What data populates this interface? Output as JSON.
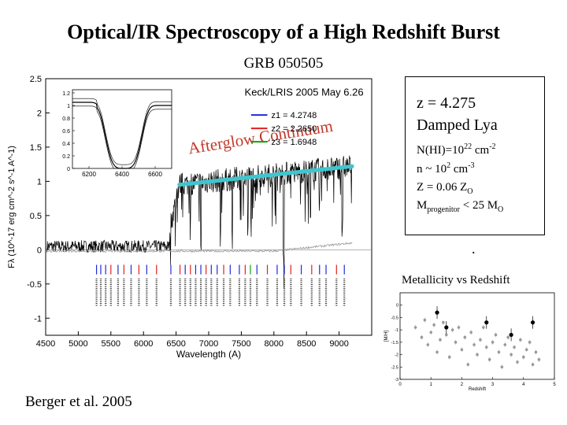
{
  "slide": {
    "title": "Optical/IR Spectroscopy of a High Redshift Burst",
    "subtitle": "GRB 050505",
    "credit": "Berger et al. 2005",
    "dot": "."
  },
  "info": {
    "z": "z = 4.275",
    "dla": "Damped Lya",
    "nhi_prefix": "N(HI)=10",
    "nhi_exp": "22",
    "nhi_unit": " cm",
    "nhi_unit_exp": "-2",
    "n_prefix": "n ~ 10",
    "n_exp": "2",
    "n_unit": " cm",
    "n_unit_exp": "-3",
    "metal_prefix": "Z = 0.06 Z",
    "metal_sub": "O",
    "mass_prefix": "M",
    "mass_sub": "progenitor",
    "mass_mid": " < 25 M",
    "mass_sub2": "O"
  },
  "chart_data": [
    {
      "type": "line",
      "title": "Keck/LRIS  2005 May 6.26",
      "xlabel": "Wavelength (A)",
      "ylabel": "Fλ (10^-17 erg cm^-2 s^-1 A^-1)",
      "xlim": [
        4500,
        9500
      ],
      "ylim": [
        -1.25,
        2.5
      ],
      "xticks": [
        4500,
        5000,
        5500,
        6000,
        6500,
        7000,
        7500,
        8000,
        8500,
        9000
      ],
      "yticks": [
        -1,
        -0.5,
        0,
        0.5,
        1,
        1.5,
        2,
        2.5
      ],
      "legend": [
        {
          "label": "z1 = 4.2748",
          "color": "#1f2bd9"
        },
        {
          "label": "z2 = 2.2650",
          "color": "#e02020"
        },
        {
          "label": "z3 = 1.6948",
          "color": "#10a010"
        }
      ],
      "annotation": "Afterglow Continuum",
      "annotation_color": "#c0392b",
      "continuum_line_color": "#3ec6cf",
      "lyman_edge": 6400,
      "flux_level_pre_edge": 0.05,
      "continuum_start": [
        6550,
        0.95
      ],
      "continuum_end": [
        9200,
        1.22
      ],
      "absorption_lines": [
        {
          "lambda": 6880,
          "depth": 0.95
        },
        {
          "lambda": 7180,
          "depth": 0.9
        },
        {
          "lambda": 7360,
          "depth": 0.85
        },
        {
          "lambda": 7600,
          "depth": 0.8
        },
        {
          "lambda": 7650,
          "depth": 0.7
        },
        {
          "lambda": 8150,
          "depth": 1.1
        },
        {
          "lambda": 8560,
          "depth": 0.75
        },
        {
          "lambda": 8700,
          "depth": 0.6
        },
        {
          "lambda": 9050,
          "depth": 0.9
        }
      ],
      "line_ids": [
        {
          "lambda": 5280,
          "color": "#1f2bd9"
        },
        {
          "lambda": 5345,
          "color": "#1f2bd9"
        },
        {
          "lambda": 5420,
          "color": "#1f2bd9"
        },
        {
          "lambda": 5500,
          "color": "#e02020"
        },
        {
          "lambda": 5610,
          "color": "#1f2bd9"
        },
        {
          "lambda": 5700,
          "color": "#e02020"
        },
        {
          "lambda": 5810,
          "color": "#1f2bd9"
        },
        {
          "lambda": 5930,
          "color": "#e02020"
        },
        {
          "lambda": 6050,
          "color": "#1f2bd9"
        },
        {
          "lambda": 6200,
          "color": "#e02020"
        },
        {
          "lambda": 6420,
          "color": "#1f2bd9"
        },
        {
          "lambda": 6560,
          "color": "#e02020"
        },
        {
          "lambda": 6640,
          "color": "#1f2bd9"
        },
        {
          "lambda": 6720,
          "color": "#e02020"
        },
        {
          "lambda": 6800,
          "color": "#1f2bd9"
        },
        {
          "lambda": 6880,
          "color": "#1f2bd9"
        },
        {
          "lambda": 6960,
          "color": "#e02020"
        },
        {
          "lambda": 7040,
          "color": "#1f2bd9"
        },
        {
          "lambda": 7130,
          "color": "#1f2bd9"
        },
        {
          "lambda": 7230,
          "color": "#e02020"
        },
        {
          "lambda": 7330,
          "color": "#1f2bd9"
        },
        {
          "lambda": 7470,
          "color": "#1f2bd9"
        },
        {
          "lambda": 7560,
          "color": "#e02020"
        },
        {
          "lambda": 7640,
          "color": "#10a010"
        },
        {
          "lambda": 7740,
          "color": "#1f2bd9"
        },
        {
          "lambda": 7900,
          "color": "#e02020"
        },
        {
          "lambda": 8050,
          "color": "#1f2bd9"
        },
        {
          "lambda": 8160,
          "color": "#1f2bd9"
        },
        {
          "lambda": 8260,
          "color": "#e02020"
        },
        {
          "lambda": 8420,
          "color": "#1f2bd9"
        },
        {
          "lambda": 8580,
          "color": "#e02020"
        },
        {
          "lambda": 8700,
          "color": "#1f2bd9"
        },
        {
          "lambda": 8800,
          "color": "#1f2bd9"
        },
        {
          "lambda": 8960,
          "color": "#e02020"
        },
        {
          "lambda": 9080,
          "color": "#1f2bd9"
        }
      ],
      "inset": {
        "xlim": [
          6100,
          6700
        ],
        "ylim": [
          0,
          1.25
        ],
        "xticks": [
          6200,
          6400,
          6600
        ],
        "yticks": [
          0,
          0.2,
          0.4,
          0.6,
          0.8,
          1,
          1.2
        ],
        "trough_center": 6410,
        "trough_halfwidth": 120
      }
    },
    {
      "type": "scatter",
      "title": "Metallicity vs Redshift",
      "xlabel": "Redshift",
      "ylabel": "[M/H]",
      "xlim": [
        0,
        5
      ],
      "ylim": [
        -3,
        0.5
      ],
      "xticks": [
        0,
        1,
        2,
        3,
        4,
        5
      ],
      "yticks": [
        0,
        -0.5,
        -1,
        -1.5,
        -2,
        -2.5,
        -3
      ],
      "points_gray": [
        [
          0.5,
          -0.9
        ],
        [
          0.7,
          -1.3
        ],
        [
          0.8,
          -0.6
        ],
        [
          0.9,
          -1.6
        ],
        [
          1.0,
          -1.1
        ],
        [
          1.1,
          -0.8
        ],
        [
          1.2,
          -1.9
        ],
        [
          1.3,
          -1.4
        ],
        [
          1.4,
          -0.7
        ],
        [
          1.5,
          -1.2
        ],
        [
          1.6,
          -2.1
        ],
        [
          1.7,
          -1.0
        ],
        [
          1.8,
          -1.5
        ],
        [
          1.9,
          -0.9
        ],
        [
          2.0,
          -1.8
        ],
        [
          2.1,
          -1.3
        ],
        [
          2.2,
          -2.4
        ],
        [
          2.3,
          -1.1
        ],
        [
          2.4,
          -1.6
        ],
        [
          2.5,
          -2.0
        ],
        [
          2.6,
          -1.4
        ],
        [
          2.7,
          -0.9
        ],
        [
          2.8,
          -1.7
        ],
        [
          2.9,
          -2.2
        ],
        [
          3.0,
          -1.5
        ],
        [
          3.1,
          -1.2
        ],
        [
          3.2,
          -1.9
        ],
        [
          3.3,
          -2.5
        ],
        [
          3.4,
          -1.6
        ],
        [
          3.5,
          -1.3
        ],
        [
          3.6,
          -2.0
        ],
        [
          3.7,
          -1.7
        ],
        [
          3.8,
          -2.3
        ],
        [
          3.9,
          -1.4
        ],
        [
          4.0,
          -2.1
        ],
        [
          4.1,
          -1.8
        ],
        [
          4.2,
          -1.5
        ],
        [
          4.3,
          -2.4
        ],
        [
          4.4,
          -1.9
        ],
        [
          4.5,
          -2.2
        ]
      ],
      "points_black": [
        [
          1.2,
          -0.3
        ],
        [
          1.5,
          -0.9
        ],
        [
          2.8,
          -0.7
        ],
        [
          3.6,
          -1.2
        ],
        [
          4.3,
          -0.7
        ]
      ]
    }
  ]
}
